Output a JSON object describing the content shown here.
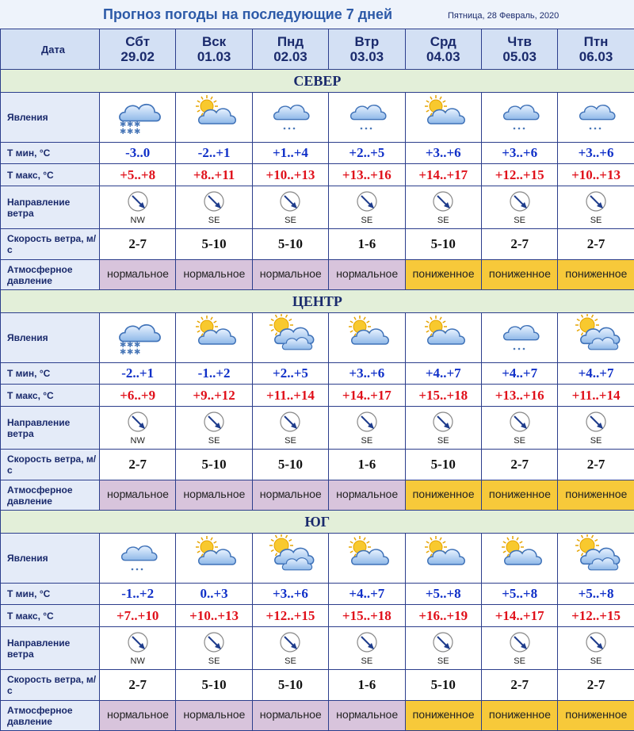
{
  "header": {
    "title": "Прогноз погоды на последующие 7 дней",
    "date": "Пятница, 28 Февраль, 2020"
  },
  "table": {
    "date_label": "Дата",
    "days": [
      {
        "name": "Сбт",
        "date": "29.02"
      },
      {
        "name": "Вск",
        "date": "01.03"
      },
      {
        "name": "Пнд",
        "date": "02.03"
      },
      {
        "name": "Втр",
        "date": "03.03"
      },
      {
        "name": "Срд",
        "date": "04.03"
      },
      {
        "name": "Чтв",
        "date": "05.03"
      },
      {
        "name": "Птн",
        "date": "06.03"
      }
    ],
    "regions": [
      {
        "name": "СЕВЕР",
        "rows": [
          {
            "label": "Явления"
          },
          {
            "label": "Т мин, °С",
            "values": [
              "-3..0",
              "-2..+1",
              "+1..+4",
              "+2..+5",
              "+3..+6",
              "+3..+6",
              "+3..+6"
            ]
          },
          {
            "label": "Т макс, °С",
            "values": [
              "+5..+8",
              "+8..+11",
              "+10..+13",
              "+13..+16",
              "+14..+17",
              "+12..+15",
              "+10..+13"
            ]
          },
          {
            "label": "Направление ветра",
            "values": [
              "NW",
              "SE",
              "SE",
              "SE",
              "SE",
              "SE",
              "SE"
            ]
          },
          {
            "label": "Скорость ветра, м/с",
            "values": [
              "2-7",
              "5-10",
              "5-10",
              "1-6",
              "5-10",
              "2-7",
              "2-7"
            ]
          },
          {
            "label": "Атмосферное давление",
            "values": [
              "нормальное",
              "нормальное",
              "нормальное",
              "нормальное",
              "пониженное",
              "пониженное",
              "пониженное"
            ]
          }
        ]
      },
      {
        "name": "ЦЕНТР",
        "rows": [
          {
            "label": "Явления"
          },
          {
            "label": "Т мин, °С",
            "values": [
              "-2..+1",
              "-1..+2",
              "+2..+5",
              "+3..+6",
              "+4..+7",
              "+4..+7",
              "+4..+7"
            ]
          },
          {
            "label": "Т макс, °С",
            "values": [
              "+6..+9",
              "+9..+12",
              "+11..+14",
              "+14..+17",
              "+15..+18",
              "+13..+16",
              "+11..+14"
            ]
          },
          {
            "label": "Направление ветра",
            "values": [
              "NW",
              "SE",
              "SE",
              "SE",
              "SE",
              "SE",
              "SE"
            ]
          },
          {
            "label": "Скорость ветра, м/с",
            "values": [
              "2-7",
              "5-10",
              "5-10",
              "1-6",
              "5-10",
              "2-7",
              "2-7"
            ]
          },
          {
            "label": "Атмосферное давление",
            "values": [
              "нормальное",
              "нормальное",
              "нормальное",
              "нормальное",
              "пониженное",
              "пониженное",
              "пониженное"
            ]
          }
        ]
      },
      {
        "name": "ЮГ",
        "rows": [
          {
            "label": "Явления"
          },
          {
            "label": "Т мин, °С",
            "values": [
              "-1..+2",
              "0..+3",
              "+3..+6",
              "+4..+7",
              "+5..+8",
              "+5..+8",
              "+5..+8"
            ]
          },
          {
            "label": "Т макс, °С",
            "values": [
              "+7..+10",
              "+10..+13",
              "+12..+15",
              "+15..+18",
              "+16..+19",
              "+14..+17",
              "+12..+15"
            ]
          },
          {
            "label": "Направление ветра",
            "values": [
              "NW",
              "SE",
              "SE",
              "SE",
              "SE",
              "SE",
              "SE"
            ]
          },
          {
            "label": "Скорость ветра, м/с",
            "values": [
              "2-7",
              "5-10",
              "5-10",
              "1-6",
              "5-10",
              "2-7",
              "2-7"
            ]
          },
          {
            "label": "Атмосферное давление",
            "values": [
              "нормальное",
              "нормальное",
              "нормальное",
              "нормальное",
              "пониженное",
              "пониженное",
              "пониженное"
            ]
          }
        ]
      }
    ]
  }
}
